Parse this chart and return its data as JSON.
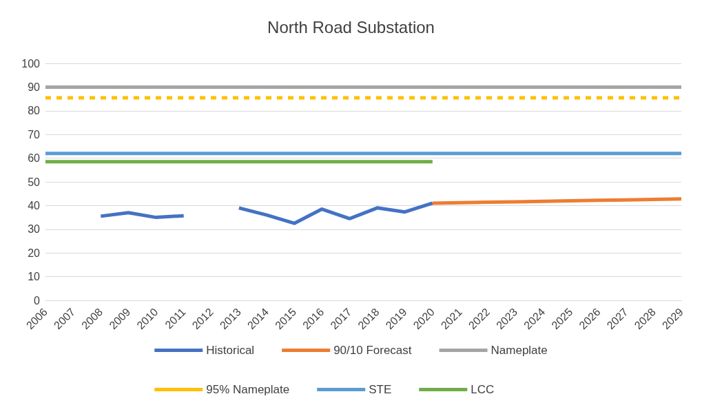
{
  "chart_data": {
    "type": "line",
    "title": "North Road Substation",
    "categories": [
      "2006",
      "2007",
      "2008",
      "2009",
      "2010",
      "2011",
      "2012",
      "2013",
      "2014",
      "2015",
      "2016",
      "2017",
      "2018",
      "2019",
      "2020",
      "2021",
      "2022",
      "2023",
      "2024",
      "2025",
      "2026",
      "2027",
      "2028",
      "2029"
    ],
    "series": [
      {
        "name": "Historical",
        "color": "#4472c4",
        "values": [
          null,
          null,
          35.5,
          37,
          35,
          35.7,
          null,
          39,
          36,
          32.5,
          38.5,
          34.5,
          39,
          37.3,
          41,
          null,
          null,
          null,
          null,
          null,
          null,
          null,
          null,
          null
        ]
      },
      {
        "name": "90/10 Forecast",
        "color": "#ed7d31",
        "values": [
          null,
          null,
          null,
          null,
          null,
          null,
          null,
          null,
          null,
          null,
          null,
          null,
          null,
          null,
          41,
          41.2,
          41.4,
          41.6,
          41.8,
          42,
          42.2,
          42.4,
          42.6,
          42.8
        ]
      },
      {
        "name": "Nameplate",
        "color": "#a5a5a5",
        "values": [
          90,
          90,
          90,
          90,
          90,
          90,
          90,
          90,
          90,
          90,
          90,
          90,
          90,
          90,
          90,
          90,
          90,
          90,
          90,
          90,
          90,
          90,
          90,
          90
        ]
      },
      {
        "name": "95% Nameplate",
        "color": "#ffc000",
        "line_style": "dashed",
        "values": [
          85.5,
          85.5,
          85.5,
          85.5,
          85.5,
          85.5,
          85.5,
          85.5,
          85.5,
          85.5,
          85.5,
          85.5,
          85.5,
          85.5,
          85.5,
          85.5,
          85.5,
          85.5,
          85.5,
          85.5,
          85.5,
          85.5,
          85.5,
          85.5
        ]
      },
      {
        "name": "STE",
        "color": "#5b9bd5",
        "values": [
          62,
          62,
          62,
          62,
          62,
          62,
          62,
          62,
          62,
          62,
          62,
          62,
          62,
          62,
          62,
          62,
          62,
          62,
          62,
          62,
          62,
          62,
          62,
          62
        ]
      },
      {
        "name": "LCC",
        "color": "#70ad47",
        "values": [
          58.5,
          58.5,
          58.5,
          58.5,
          58.5,
          58.5,
          58.5,
          58.5,
          58.5,
          58.5,
          58.5,
          58.5,
          58.5,
          58.5,
          58.5,
          null,
          null,
          null,
          null,
          null,
          null,
          null,
          null,
          null
        ]
      }
    ],
    "ylim": [
      0,
      100
    ],
    "yticks": [
      0,
      10,
      20,
      30,
      40,
      50,
      60,
      70,
      80,
      90,
      100
    ],
    "grid": "y",
    "legend": "bottom",
    "marker": "none",
    "line_style": "solid"
  }
}
